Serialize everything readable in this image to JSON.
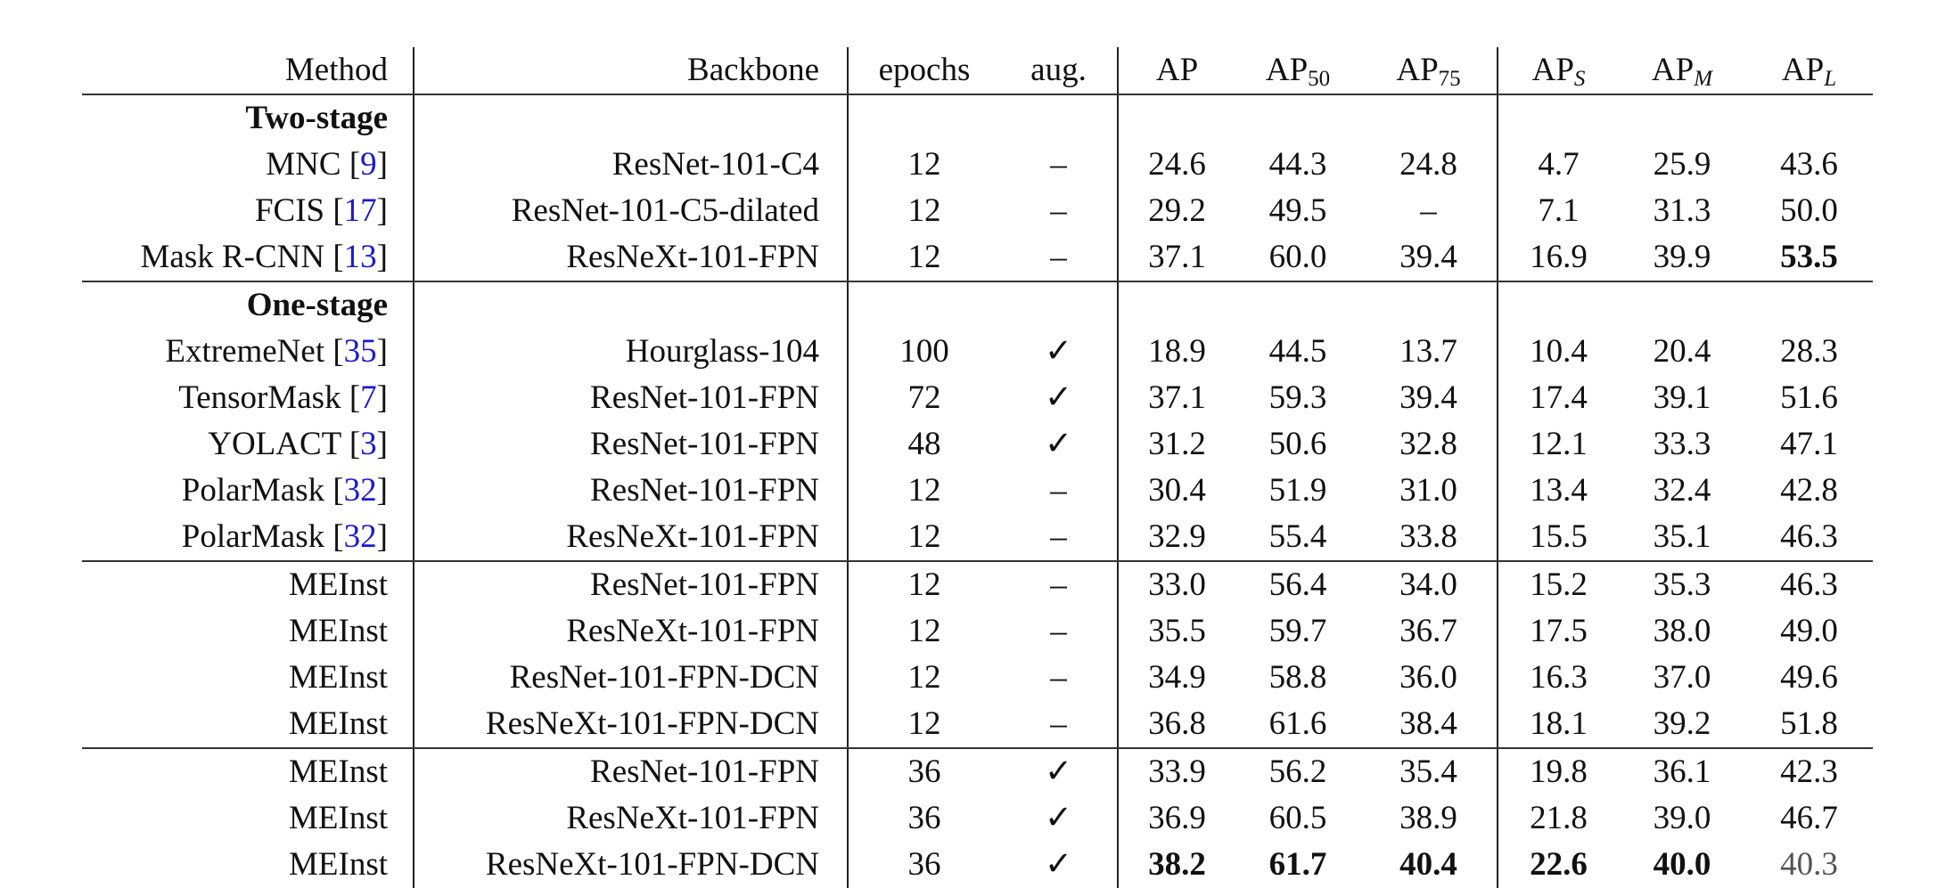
{
  "header": {
    "method": "Method",
    "backbone": "Backbone",
    "epochs": "epochs",
    "aug": "aug.",
    "metrics": [
      {
        "base": "AP",
        "sub": "",
        "italic": false
      },
      {
        "base": "AP",
        "sub": "50",
        "italic": false
      },
      {
        "base": "AP",
        "sub": "75",
        "italic": false
      },
      {
        "base": "AP",
        "sub": "S",
        "italic": true
      },
      {
        "base": "AP",
        "sub": "M",
        "italic": true
      },
      {
        "base": "AP",
        "sub": "L",
        "italic": true
      }
    ]
  },
  "colors": {
    "citation": "#1a1ad0",
    "text": "#111111"
  },
  "icons": {
    "yes": "check-mark-icon",
    "no": "dash"
  },
  "rows": [
    {
      "section": "Two-stage"
    },
    {
      "method": "MNC",
      "cite": "9",
      "backbone": "ResNet-101-C4",
      "epochs": "12",
      "aug": "–",
      "values": [
        "24.6",
        "44.3",
        "24.8",
        "4.7",
        "25.9",
        "43.6"
      ],
      "bold": []
    },
    {
      "method": "FCIS",
      "cite": "17",
      "backbone": "ResNet-101-C5-dilated",
      "epochs": "12",
      "aug": "–",
      "values": [
        "29.2",
        "49.5",
        "–",
        "7.1",
        "31.3",
        "50.0"
      ],
      "bold": []
    },
    {
      "method": "Mask R-CNN",
      "cite": "13",
      "backbone": "ResNeXt-101-FPN",
      "epochs": "12",
      "aug": "–",
      "values": [
        "37.1",
        "60.0",
        "39.4",
        "16.9",
        "39.9",
        "53.5"
      ],
      "bold": [
        5
      ],
      "rule": true
    },
    {
      "section": "One-stage"
    },
    {
      "method": "ExtremeNet",
      "cite": "35",
      "backbone": "Hourglass-104",
      "epochs": "100",
      "aug": "✓",
      "values": [
        "18.9",
        "44.5",
        "13.7",
        "10.4",
        "20.4",
        "28.3"
      ],
      "bold": []
    },
    {
      "method": "TensorMask",
      "cite": "7",
      "backbone": "ResNet-101-FPN",
      "epochs": "72",
      "aug": "✓",
      "values": [
        "37.1",
        "59.3",
        "39.4",
        "17.4",
        "39.1",
        "51.6"
      ],
      "bold": []
    },
    {
      "method": "YOLACT",
      "cite": "3",
      "backbone": "ResNet-101-FPN",
      "epochs": "48",
      "aug": "✓",
      "values": [
        "31.2",
        "50.6",
        "32.8",
        "12.1",
        "33.3",
        "47.1"
      ],
      "bold": []
    },
    {
      "method": "PolarMask",
      "cite": "32",
      "backbone": "ResNet-101-FPN",
      "epochs": "12",
      "aug": "–",
      "values": [
        "30.4",
        "51.9",
        "31.0",
        "13.4",
        "32.4",
        "42.8"
      ],
      "bold": []
    },
    {
      "method": "PolarMask",
      "cite": "32",
      "backbone": "ResNeXt-101-FPN",
      "epochs": "12",
      "aug": "–",
      "values": [
        "32.9",
        "55.4",
        "33.8",
        "15.5",
        "35.1",
        "46.3"
      ],
      "bold": [],
      "rule": true
    },
    {
      "method": "MEInst",
      "backbone": "ResNet-101-FPN",
      "epochs": "12",
      "aug": "–",
      "values": [
        "33.0",
        "56.4",
        "34.0",
        "15.2",
        "35.3",
        "46.3"
      ],
      "bold": []
    },
    {
      "method": "MEInst",
      "backbone": "ResNeXt-101-FPN",
      "epochs": "12",
      "aug": "–",
      "values": [
        "35.5",
        "59.7",
        "36.7",
        "17.5",
        "38.0",
        "49.0"
      ],
      "bold": []
    },
    {
      "method": "MEInst",
      "backbone": "ResNet-101-FPN-DCN",
      "epochs": "12",
      "aug": "–",
      "values": [
        "34.9",
        "58.8",
        "36.0",
        "16.3",
        "37.0",
        "49.6"
      ],
      "bold": []
    },
    {
      "method": "MEInst",
      "backbone": "ResNeXt-101-FPN-DCN",
      "epochs": "12",
      "aug": "–",
      "values": [
        "36.8",
        "61.6",
        "38.4",
        "18.1",
        "39.2",
        "51.8"
      ],
      "bold": [],
      "rule": true
    },
    {
      "method": "MEInst",
      "backbone": "ResNet-101-FPN",
      "epochs": "36",
      "aug": "✓",
      "values": [
        "33.9",
        "56.2",
        "35.4",
        "19.8",
        "36.1",
        "42.3"
      ],
      "bold": []
    },
    {
      "method": "MEInst",
      "backbone": "ResNeXt-101-FPN",
      "epochs": "36",
      "aug": "✓",
      "values": [
        "36.9",
        "60.5",
        "38.9",
        "21.8",
        "39.0",
        "46.7"
      ],
      "bold": []
    },
    {
      "method": "MEInst",
      "backbone": "ResNeXt-101-FPN-DCN",
      "epochs": "36",
      "aug": "✓",
      "values": [
        "38.2",
        "61.7",
        "40.4",
        "22.6",
        "40.0",
        "40.3"
      ],
      "bold": [
        0,
        1,
        2,
        3,
        4
      ]
    }
  ]
}
